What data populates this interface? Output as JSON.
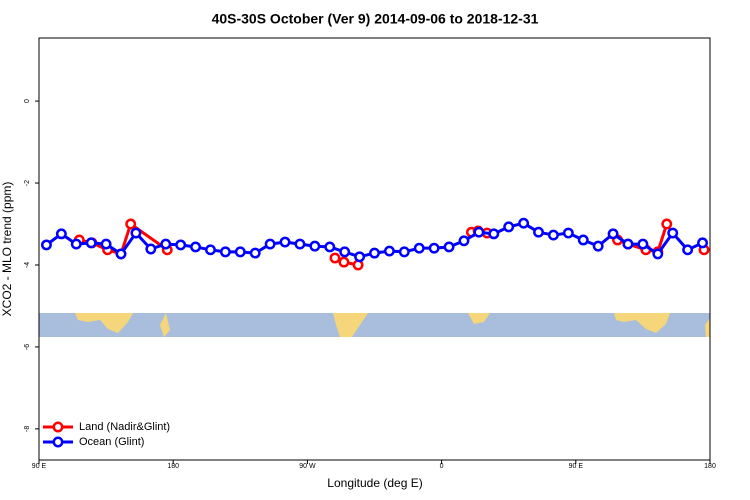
{
  "chart_data": {
    "type": "line",
    "title": "40S-30S October (Ver 9)   2014-09-06 to 2018-12-31",
    "x_label": "Longitude (deg E)",
    "y_label": "XCO2 - MLO trend (ppm)",
    "xlim": [
      90,
      540
    ],
    "ylim": [
      -8.76,
      1.54
    ],
    "xticks": [
      {
        "value": 90,
        "label": "90 E"
      },
      {
        "value": 180,
        "label": "180"
      },
      {
        "value": 270,
        "label": "90 W"
      },
      {
        "value": 360,
        "label": "0"
      },
      {
        "value": 450,
        "label": "90 E"
      },
      {
        "value": 540,
        "label": "180"
      }
    ],
    "yticks": [
      0,
      -2,
      -4,
      -6,
      -8
    ],
    "legend": "bottom-left",
    "series": [
      {
        "name": "Land (Nadir&Glint)",
        "color": "#ff0000",
        "x": [
          117,
          125.5,
          136,
          145,
          151.5,
          176,
          null,
          288.5,
          294.5,
          304,
          null,
          380,
          384.5,
          390.5,
          null,
          478,
          485,
          497,
          505,
          511,
          null,
          536
        ],
        "values": [
          -3.39,
          -3.46,
          -3.63,
          -3.73,
          -3.0,
          -3.63,
          null,
          -3.83,
          -3.93,
          -4.0,
          null,
          -3.2,
          -3.17,
          -3.22,
          null,
          -3.39,
          -3.49,
          -3.63,
          -3.68,
          -3.0,
          null,
          -3.63
        ]
      },
      {
        "name": "Ocean (Glint)",
        "color": "#0000ff",
        "x": [
          95,
          105,
          115,
          125,
          135,
          145,
          155,
          165,
          175,
          185,
          195,
          205,
          215,
          225,
          235,
          245,
          255,
          265,
          275,
          285,
          295,
          305,
          315,
          325,
          335,
          345,
          355,
          365,
          375,
          385,
          395,
          405,
          415,
          425,
          435,
          445,
          455,
          465,
          475,
          485,
          495,
          505,
          515,
          525,
          535
        ],
        "values": [
          -3.51,
          -3.24,
          -3.49,
          -3.46,
          -3.49,
          -3.73,
          -3.22,
          -3.61,
          -3.49,
          -3.51,
          -3.56,
          -3.63,
          -3.68,
          -3.68,
          -3.71,
          -3.49,
          -3.44,
          -3.49,
          -3.54,
          -3.56,
          -3.68,
          -3.8,
          -3.71,
          -3.66,
          -3.68,
          -3.59,
          -3.59,
          -3.56,
          -3.41,
          -3.2,
          -3.24,
          -3.07,
          -2.98,
          -3.2,
          -3.27,
          -3.22,
          -3.39,
          -3.54,
          -3.24,
          -3.49,
          -3.49,
          -3.73,
          -3.22,
          -3.63,
          -3.46
        ]
      }
    ]
  }
}
